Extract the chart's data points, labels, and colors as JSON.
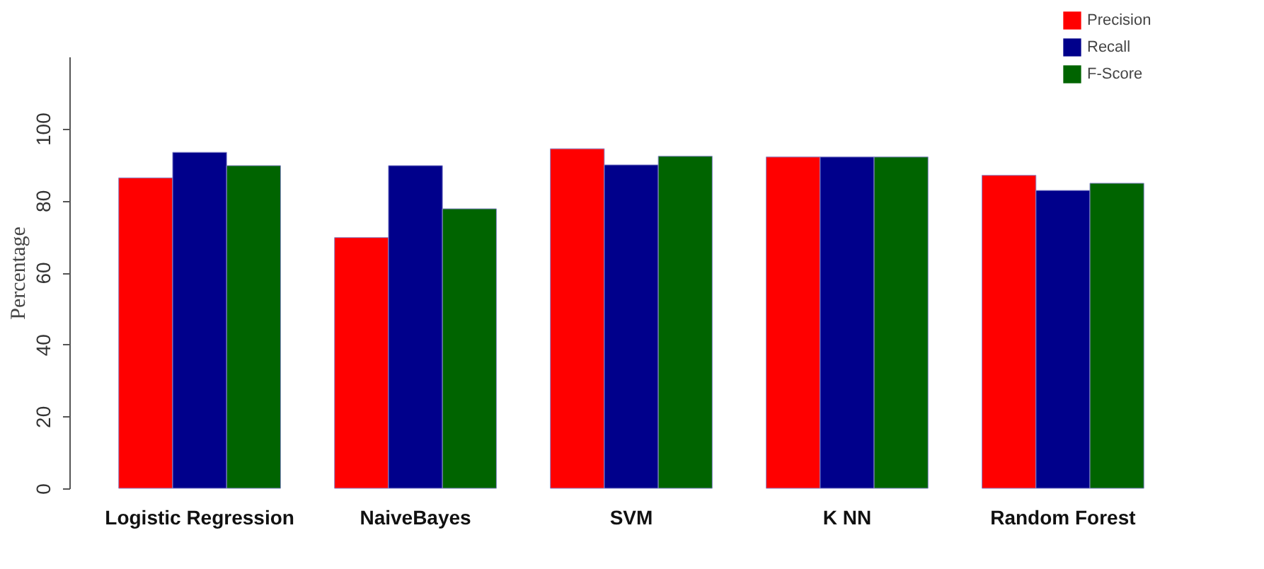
{
  "chart_data": {
    "type": "bar",
    "ylabel": "Percentage",
    "categories": [
      "Logistic Regression",
      "NaiveBayes",
      "SVM",
      "K NN",
      "Random Forest"
    ],
    "series": [
      {
        "name": "Precision",
        "color": "#ff0000",
        "values": [
          86.3,
          69.7,
          94.4,
          92.1,
          87.0
        ]
      },
      {
        "name": "Recall",
        "color": "#00008b",
        "values": [
          93.4,
          89.7,
          89.9,
          92.1,
          82.8
        ]
      },
      {
        "name": "F-Score",
        "color": "#006400",
        "values": [
          89.7,
          77.7,
          92.3,
          92.1,
          84.8
        ]
      }
    ],
    "ylim": [
      0,
      120
    ],
    "yticks": [
      0,
      20,
      40,
      60,
      80,
      100
    ],
    "grid": false,
    "legend": "top right"
  }
}
